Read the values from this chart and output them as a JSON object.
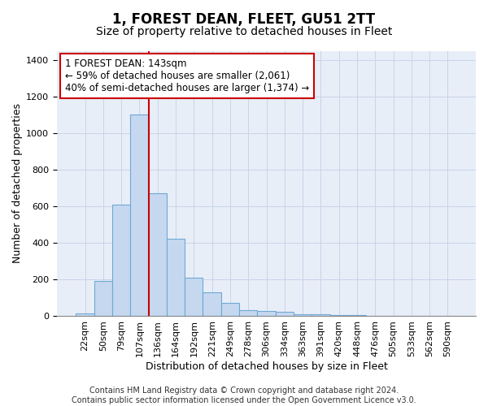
{
  "title": "1, FOREST DEAN, FLEET, GU51 2TT",
  "subtitle": "Size of property relative to detached houses in Fleet",
  "xlabel": "Distribution of detached houses by size in Fleet",
  "ylabel": "Number of detached properties",
  "categories": [
    "22sqm",
    "50sqm",
    "79sqm",
    "107sqm",
    "136sqm",
    "164sqm",
    "192sqm",
    "221sqm",
    "249sqm",
    "278sqm",
    "306sqm",
    "334sqm",
    "363sqm",
    "391sqm",
    "420sqm",
    "448sqm",
    "476sqm",
    "505sqm",
    "533sqm",
    "562sqm",
    "590sqm"
  ],
  "values": [
    15,
    190,
    610,
    1100,
    670,
    420,
    210,
    130,
    70,
    30,
    25,
    20,
    8,
    8,
    5,
    3,
    2,
    2,
    2,
    2,
    2
  ],
  "bar_color": "#c5d8f0",
  "bar_edge_color": "#6fa8d4",
  "vline_color": "#cc0000",
  "vline_index": 3.5,
  "annotation_line1": "1 FOREST DEAN: 143sqm",
  "annotation_line2": "← 59% of detached houses are smaller (2,061)",
  "annotation_line3": "40% of semi-detached houses are larger (1,374) →",
  "annotation_box_facecolor": "#ffffff",
  "annotation_box_edgecolor": "#cc0000",
  "ylim": [
    0,
    1450
  ],
  "yticks": [
    0,
    200,
    400,
    600,
    800,
    1000,
    1200,
    1400
  ],
  "footer": "Contains HM Land Registry data © Crown copyright and database right 2024.\nContains public sector information licensed under the Open Government Licence v3.0.",
  "title_fontsize": 12,
  "subtitle_fontsize": 10,
  "axis_label_fontsize": 9,
  "tick_fontsize": 8,
  "annotation_fontsize": 8.5,
  "footer_fontsize": 7,
  "grid_color": "#c8d4e8",
  "bg_color": "#e8eef8"
}
